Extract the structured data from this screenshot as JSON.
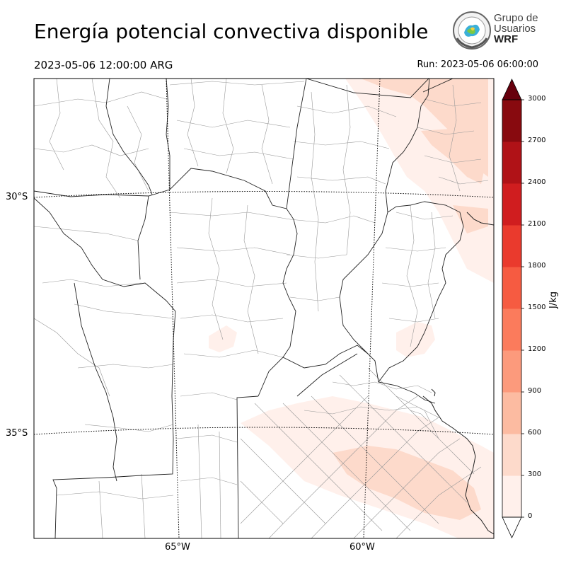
{
  "header": {
    "title": "Energía potencial convectiva disponible",
    "valid_time": "2023-05-06 12:00:00 ARG",
    "run_time": "Run: 2023-05-06 06:00:00"
  },
  "logo": {
    "line1": "Grupo de",
    "line2": "Usuarios",
    "line3": "WRF"
  },
  "axes": {
    "latitude_labels": [
      "30°S",
      "35°S"
    ],
    "longitude_labels": [
      "65°W",
      "60°W"
    ]
  },
  "colorbar": {
    "unit": "J/kg",
    "ticks": [
      "0",
      "300",
      "600",
      "900",
      "1200",
      "1500",
      "1800",
      "2100",
      "2400",
      "2700",
      "3000"
    ],
    "colors": [
      "#fff0eb",
      "#fddacb",
      "#fcbba1",
      "#fc9a7c",
      "#fb7b5c",
      "#f65b41",
      "#ea3a2d",
      "#d01d1f",
      "#b01217",
      "#880a0f"
    ],
    "over_color": "#67000d",
    "under_color": "#ffffff"
  }
}
